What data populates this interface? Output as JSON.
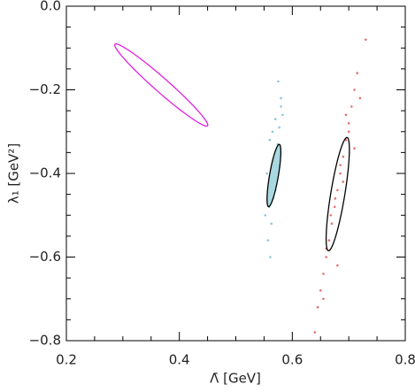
{
  "chart_data": {
    "type": "scatter",
    "xlabel": "Λ̄ [GeV]",
    "ylabel": "λ₁ [GeV²]",
    "xlim": [
      0.2,
      0.8
    ],
    "ylim": [
      -0.8,
      0.0
    ],
    "xticks": [
      0.2,
      0.4,
      0.6,
      0.8
    ],
    "yticks": [
      {
        "value": 0.0,
        "label": "0.0"
      },
      {
        "value": -0.2,
        "label": "−0.2"
      },
      {
        "value": -0.4,
        "label": "−0.4"
      },
      {
        "value": -0.6,
        "label": "−0.6"
      },
      {
        "value": -0.8,
        "label": "−0.8"
      }
    ],
    "xminorticks": [
      0.25,
      0.3,
      0.35,
      0.45,
      0.5,
      0.55,
      0.65,
      0.7,
      0.75
    ],
    "yminorticks": [
      -0.05,
      -0.1,
      -0.15,
      -0.25,
      -0.3,
      -0.35,
      -0.45,
      -0.5,
      -0.55,
      -0.65,
      -0.7,
      -0.75
    ],
    "series": [
      {
        "color": "#8ec8d8",
        "x": [
          0.575,
          0.58,
          0.57,
          0.565,
          0.56,
          0.578,
          0.572,
          0.568,
          0.555,
          0.562,
          0.574,
          0.57,
          0.583,
          0.566,
          0.559,
          0.552,
          0.571,
          0.577,
          0.563,
          0.58,
          0.568,
          0.557,
          0.573,
          0.561
        ],
        "y": [
          -0.18,
          -0.22,
          -0.27,
          -0.3,
          -0.32,
          -0.34,
          -0.36,
          -0.38,
          -0.4,
          -0.42,
          -0.33,
          -0.44,
          -0.26,
          -0.46,
          -0.48,
          -0.5,
          -0.37,
          -0.29,
          -0.52,
          -0.24,
          -0.43,
          -0.56,
          -0.35,
          -0.6
        ]
      },
      {
        "color": "#e87070",
        "x": [
          0.73,
          0.715,
          0.71,
          0.705,
          0.7,
          0.695,
          0.69,
          0.685,
          0.68,
          0.675,
          0.67,
          0.665,
          0.66,
          0.655,
          0.65,
          0.645,
          0.64,
          0.72,
          0.7,
          0.685,
          0.676,
          0.668,
          0.69,
          0.66,
          0.655,
          0.71,
          0.695,
          0.68
        ],
        "y": [
          -0.08,
          -0.16,
          -0.2,
          -0.24,
          -0.28,
          -0.32,
          -0.36,
          -0.4,
          -0.44,
          -0.48,
          -0.52,
          -0.56,
          -0.6,
          -0.64,
          -0.68,
          -0.72,
          -0.78,
          -0.22,
          -0.3,
          -0.38,
          -0.46,
          -0.5,
          -0.42,
          -0.58,
          -0.7,
          -0.34,
          -0.26,
          -0.62
        ]
      }
    ],
    "ellipses": [
      {
        "cx": 0.368,
        "cy": -0.1885,
        "ax": 0.082,
        "ay": -0.0975,
        "bx": -0.0083,
        "by": -0.0127,
        "stroke": "#e020e0",
        "fill": "none"
      },
      {
        "cx": 0.5675,
        "cy": -0.405,
        "ax": 0.0095,
        "ay": 0.0745,
        "bx": 0.0077,
        "by": -0.0018,
        "stroke": "#000000",
        "fill": "#a8d8e0"
      },
      {
        "cx": 0.6805,
        "cy": -0.4495,
        "ax": 0.0165,
        "ay": 0.1355,
        "bx": 0.0123,
        "by": -0.0028,
        "stroke": "#000000",
        "fill": "none"
      }
    ]
  }
}
